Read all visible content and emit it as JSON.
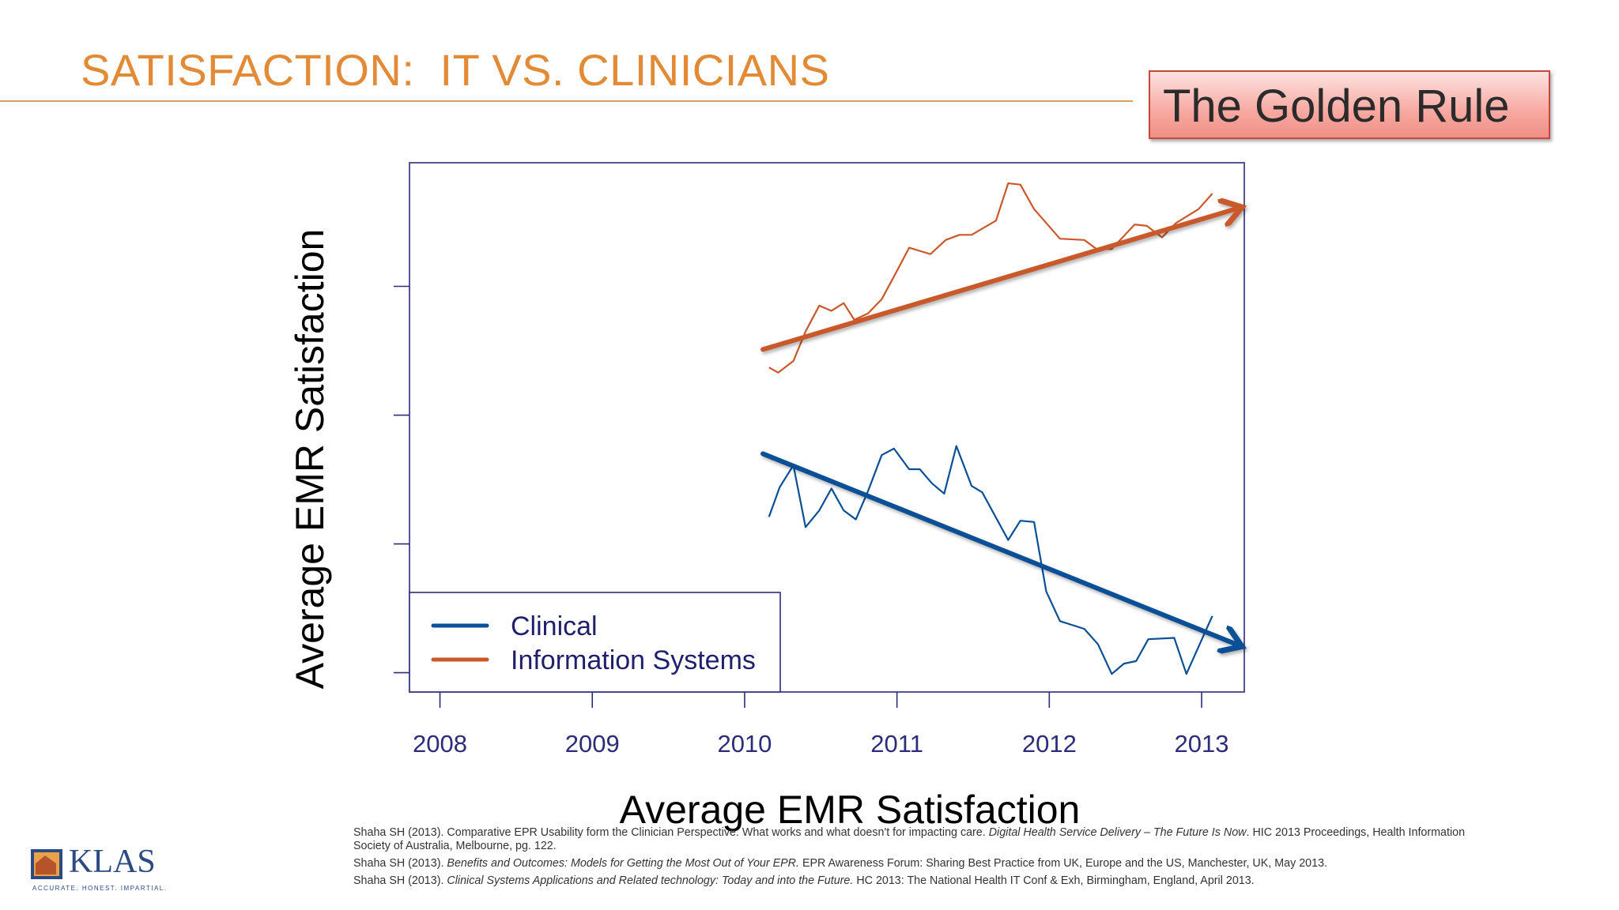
{
  "slide": {
    "title": "SATISFACTION:  IT VS. CLINICIANS",
    "callout": "The Golden Rule",
    "logo": {
      "text": "KLAS",
      "tagline": "ACCURATE. HONEST. IMPARTIAL."
    },
    "references": [
      {
        "prefix": "Shaha SH (2013).  Comparative EPR Usability form the Clinician Perspective:  What works and what doesn't for impacting care.  ",
        "italic": "Digital Health Service Delivery – The Future Is Now",
        "suffix": ". HIC 2013 Proceedings, Health Information Society of Australia, Melbourne, pg. 122."
      },
      {
        "prefix": "Shaha SH (2013).  ",
        "italic": "Benefits and Outcomes: Models for Getting the Most Out of Your EPR.",
        "suffix": "  EPR Awareness Forum: Sharing Best Practice from UK, Europe and the US, Manchester, UK, May 2013."
      },
      {
        "prefix": "Shaha SH (2013).  ",
        "italic": "Clinical Systems Applications and Related technology:  Today and into the Future.",
        "suffix": "  HC 2013: The National Health IT Conf & Exh, Birmingham, England, April 2013."
      }
    ]
  },
  "chart_data": {
    "type": "line",
    "title": "",
    "xlabel": "Average EMR Satisfaction",
    "ylabel": "Average EMR Satisfaction",
    "xlim": [
      2007.8,
      2013.28
    ],
    "ylim": [
      0.85,
      4.96
    ],
    "xticks": [
      2008,
      2009,
      2010,
      2011,
      2012,
      2013
    ],
    "xtick_labels": [
      "2008",
      "2009",
      "2010",
      "2011",
      "2012",
      "2013"
    ],
    "yticks": [
      1,
      2,
      3,
      4
    ],
    "ytick_labels_shown": false,
    "grid": false,
    "legend_position": "bottom-left",
    "colors": {
      "axis": "#2c2c7a",
      "Clinical": "#0b4f96",
      "Information Systems": "#c9592a",
      "legend_text": "#1f1f6e"
    },
    "series": [
      {
        "name": "Clinical",
        "x": [
          2010.16,
          2010.23,
          2010.32,
          2010.4,
          2010.49,
          2010.57,
          2010.65,
          2010.73,
          2010.81,
          2010.9,
          2010.98,
          2011.08,
          2011.15,
          2011.23,
          2011.31,
          2011.39,
          2011.49,
          2011.56,
          2011.73,
          2011.81,
          2011.9,
          2011.98,
          2012.07,
          2012.23,
          2012.32,
          2012.41,
          2012.49,
          2012.57,
          2012.65,
          2012.82,
          2012.9,
          2013.07
        ],
        "y": [
          2.21,
          2.44,
          2.61,
          2.13,
          2.26,
          2.43,
          2.26,
          2.19,
          2.41,
          2.69,
          2.74,
          2.58,
          2.58,
          2.47,
          2.39,
          2.76,
          2.45,
          2.4,
          2.03,
          2.18,
          2.17,
          1.63,
          1.4,
          1.34,
          1.22,
          0.99,
          1.07,
          1.09,
          1.26,
          1.27,
          0.99,
          1.44
        ],
        "trend": {
          "x": [
            2010.12,
            2013.25
          ],
          "y": [
            2.7,
            1.21
          ]
        }
      },
      {
        "name": "Information Systems",
        "x": [
          2010.16,
          2010.22,
          2010.32,
          2010.4,
          2010.49,
          2010.57,
          2010.65,
          2010.72,
          2010.81,
          2010.9,
          2011.0,
          2011.08,
          2011.22,
          2011.32,
          2011.41,
          2011.49,
          2011.65,
          2011.73,
          2011.81,
          2011.9,
          2012.07,
          2012.23,
          2012.31,
          2012.41,
          2012.56,
          2012.64,
          2012.74,
          2012.83,
          2012.98,
          2013.07
        ],
        "y": [
          3.37,
          3.33,
          3.42,
          3.65,
          3.85,
          3.81,
          3.87,
          3.74,
          3.79,
          3.9,
          4.12,
          4.3,
          4.25,
          4.36,
          4.4,
          4.4,
          4.51,
          4.8,
          4.79,
          4.6,
          4.37,
          4.36,
          4.29,
          4.29,
          4.48,
          4.47,
          4.38,
          4.49,
          4.6,
          4.72
        ],
        "trend": {
          "x": [
            2010.12,
            2013.25
          ],
          "y": [
            3.51,
            4.61
          ]
        }
      }
    ]
  }
}
